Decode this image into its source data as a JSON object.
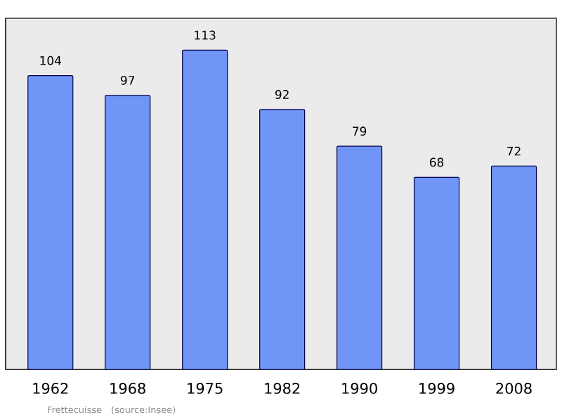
{
  "chart_data": {
    "type": "bar",
    "relative": false,
    "categories": [
      "1962",
      "1968",
      "1975",
      "1982",
      "1990",
      "1999",
      "2008"
    ],
    "values": [
      104,
      97,
      113,
      92,
      79,
      68,
      72
    ],
    "color": "#7095f7",
    "data_labels": true,
    "annotations": [
      "Frettecuisse",
      "(source:Insee)"
    ]
  }
}
